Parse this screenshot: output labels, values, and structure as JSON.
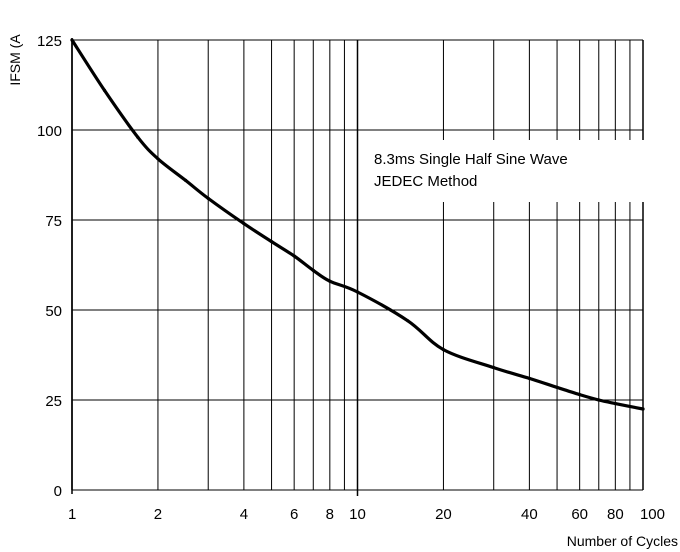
{
  "chart_data": {
    "type": "line",
    "title": "",
    "xlabel": "Number of Cycles",
    "ylabel": "IFSM (A",
    "x_scale": "log",
    "xlim": [
      1,
      100
    ],
    "ylim": [
      0,
      125
    ],
    "grid": true,
    "x_ticks": [
      1,
      2,
      4,
      6,
      8,
      10,
      20,
      40,
      60,
      80,
      100
    ],
    "x_tick_labels": [
      "1",
      "2",
      "4",
      "6",
      "8",
      "10",
      "20",
      "40",
      "60",
      "80",
      "100"
    ],
    "x_grid": [
      1,
      2,
      3,
      4,
      5,
      6,
      7,
      8,
      9,
      10,
      20,
      30,
      40,
      50,
      60,
      70,
      80,
      90,
      100
    ],
    "y_ticks": [
      0,
      25,
      50,
      75,
      100,
      125
    ],
    "y_tick_labels": [
      "0",
      "25",
      "50",
      "75",
      "100",
      "125"
    ],
    "annotation": [
      "8.3ms Single Half Sine Wave",
      "JEDEC Method"
    ],
    "series": [
      {
        "x": [
          1,
          1.3,
          1.7,
          2,
          2.5,
          3,
          4,
          5,
          6,
          7,
          8,
          10,
          15,
          20,
          30,
          40,
          50,
          60,
          70,
          80,
          100
        ],
        "y": [
          125,
          111,
          98,
          92,
          86,
          81,
          74,
          69,
          65,
          61,
          58,
          55,
          47,
          39,
          34,
          31,
          28.5,
          26.5,
          25,
          24,
          22.5
        ]
      }
    ]
  }
}
